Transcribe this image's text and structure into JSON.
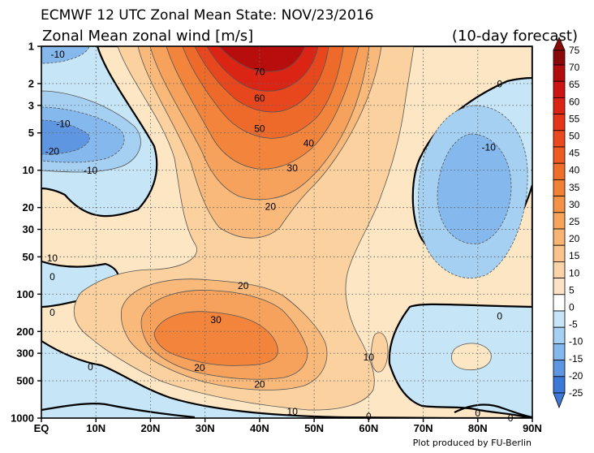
{
  "chart_data": {
    "type": "heatmap",
    "title": "ECMWF 12 UTC Zonal Mean State: NOV/23/2016",
    "subtitle": "Zonal Mean zonal wind [m/s]",
    "forecast_label": "(10-day forecast)",
    "credit": "Plot produced by FU-Berlin",
    "x_axis": {
      "labels": [
        "EQ",
        "10N",
        "20N",
        "30N",
        "40N",
        "50N",
        "60N",
        "70N",
        "80N",
        "90N"
      ],
      "values": [
        0,
        10,
        20,
        30,
        40,
        50,
        60,
        70,
        80,
        90
      ],
      "range": [
        0,
        90
      ]
    },
    "y_axis": {
      "labels": [
        "1",
        "2",
        "3",
        "5",
        "10",
        "20",
        "30",
        "50",
        "100",
        "200",
        "300",
        "500",
        "1000"
      ],
      "values": [
        1,
        2,
        3,
        5,
        10,
        20,
        30,
        50,
        100,
        200,
        300,
        500,
        1000
      ],
      "range": [
        1,
        1000
      ],
      "scale": "log",
      "inverted": true
    },
    "colorbar": {
      "levels": [
        75,
        70,
        65,
        60,
        55,
        50,
        45,
        40,
        35,
        30,
        25,
        20,
        15,
        10,
        5,
        0,
        -5,
        -10,
        -15,
        -20,
        -25
      ],
      "labels": [
        "75",
        "70",
        "65",
        "60",
        "55",
        "50",
        "45",
        "40",
        "35",
        "30",
        "25",
        "20",
        "15",
        "10",
        "5",
        "0",
        "-5",
        "-10",
        "-15",
        "-20",
        "-25"
      ]
    },
    "contour_labels": [
      {
        "text": "-10",
        "lat": 3,
        "p": 1.15
      },
      {
        "text": "-10",
        "lat": 4,
        "p": 4.2
      },
      {
        "text": "-20",
        "lat": 2,
        "p": 7
      },
      {
        "text": "-10",
        "lat": 9,
        "p": 10
      },
      {
        "text": "70",
        "lat": 40,
        "p": 1.6
      },
      {
        "text": "60",
        "lat": 40,
        "p": 2.6
      },
      {
        "text": "50",
        "lat": 40,
        "p": 4.6
      },
      {
        "text": "40",
        "lat": 49,
        "p": 6
      },
      {
        "text": "30",
        "lat": 46,
        "p": 9.5
      },
      {
        "text": "20",
        "lat": 42,
        "p": 19.5
      },
      {
        "text": "-10",
        "lat": 82,
        "p": 6.5
      },
      {
        "text": "0",
        "lat": 84,
        "p": 2
      },
      {
        "text": "10",
        "lat": 2,
        "p": 51
      },
      {
        "text": "0",
        "lat": 2,
        "p": 72
      },
      {
        "text": "0",
        "lat": 2,
        "p": 140
      },
      {
        "text": "20",
        "lat": 37,
        "p": 85
      },
      {
        "text": "30",
        "lat": 32,
        "p": 160
      },
      {
        "text": "20",
        "lat": 29,
        "p": 390
      },
      {
        "text": "20",
        "lat": 40,
        "p": 530
      },
      {
        "text": "10",
        "lat": 60,
        "p": 320
      },
      {
        "text": "10",
        "lat": 46,
        "p": 880
      },
      {
        "text": "0",
        "lat": 9,
        "p": 385
      },
      {
        "text": "0",
        "lat": 60,
        "p": 960
      },
      {
        "text": "0",
        "lat": 84,
        "p": 150
      },
      {
        "text": "0",
        "lat": 80,
        "p": 910
      },
      {
        "text": "0",
        "lat": 86,
        "p": 990
      }
    ],
    "grid": true
  }
}
